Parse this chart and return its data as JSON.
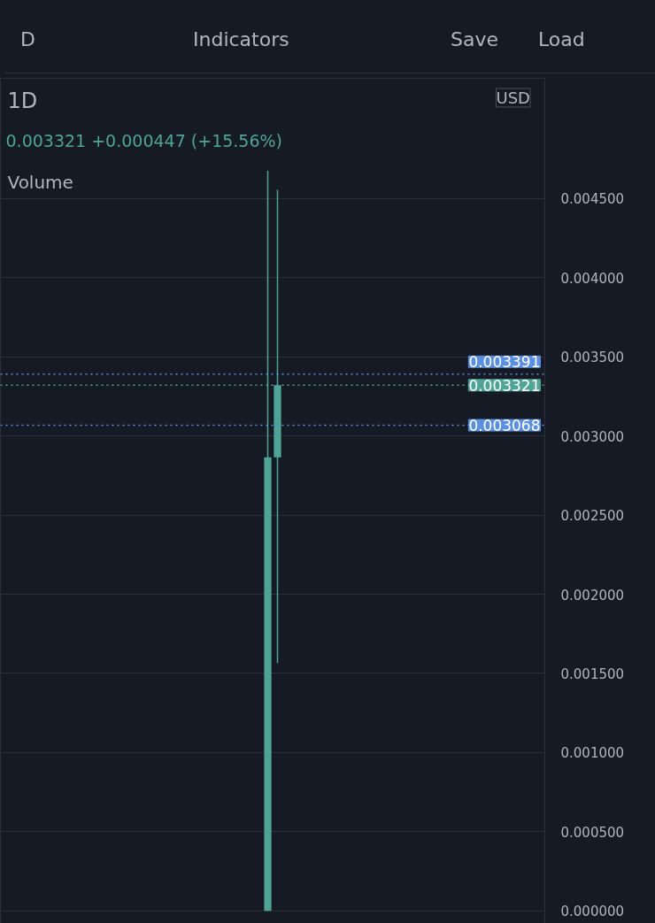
{
  "chart_data": {
    "type": "candlestick",
    "title": "1D",
    "subtitle": "0.003321  +0.000447 (+15.56%)",
    "categories": [
      null,
      null,
      null,
      null,
      null,
      null,
      null,
      null,
      null,
      null,
      null,
      null,
      null,
      null,
      null,
      null,
      null,
      null,
      null,
      null,
      null,
      null,
      null,
      null,
      null,
      null,
      null,
      null,
      null,
      null,
      null,
      null,
      null,
      null,
      null,
      null,
      null,
      null,
      null,
      null,
      null,
      null,
      null,
      null,
      null,
      null,
      null,
      null,
      null,
      null,
      null,
      null,
      null,
      null,
      null,
      null
    ],
    "ohlc": [
      null,
      null,
      null,
      null,
      null,
      null,
      null,
      null,
      null,
      null,
      null,
      null,
      null,
      null,
      null,
      null,
      null,
      null,
      null,
      null,
      null,
      null,
      null,
      null,
      null,
      null,
      null,
      [
        0,
        0.004675,
        0,
        0.002865
      ],
      [
        0.002865,
        0.004555,
        0.001565,
        0.003321
      ],
      null,
      null,
      null,
      null,
      null,
      null,
      null,
      null,
      null,
      null,
      null,
      null,
      null,
      null,
      null,
      null,
      null,
      null,
      null,
      null,
      null,
      null,
      null,
      null,
      null,
      null,
      null
    ],
    "color": "#4ea597",
    "ylim": [
      -8e-05,
      0.00526
    ],
    "yticks": [
      {
        "value": 0,
        "label": "0.000000"
      },
      {
        "value": 0.0005,
        "label": "0.000500"
      },
      {
        "value": 0.001,
        "label": "0.001000"
      },
      {
        "value": 0.0015,
        "label": "0.001500"
      },
      {
        "value": 0.002,
        "label": "0.002000"
      },
      {
        "value": 0.0025,
        "label": "0.002500"
      },
      {
        "value": 0.003,
        "label": "0.003000"
      },
      {
        "value": 0.0035,
        "label": "0.003500"
      },
      {
        "value": 0.004,
        "label": "0.004000"
      },
      {
        "value": 0.0045,
        "label": "0.004500"
      }
    ],
    "ref_lines": [
      {
        "axis": "y",
        "value": 0.003391,
        "label": "0.003391",
        "color": "#5b8fe0",
        "line_style": "dotted"
      },
      {
        "axis": "y",
        "value": 0.003321,
        "label": "0.003321",
        "color": "#4ea597",
        "line_style": "dotted"
      },
      {
        "axis": "y",
        "value": 0.003068,
        "label": "0.003068",
        "color": "#5b8fe0",
        "line_style": "dotted"
      }
    ],
    "grid": "y",
    "annotations": [
      "Volume",
      "USD",
      "D",
      "Indicators",
      "Save",
      "Load"
    ]
  }
}
